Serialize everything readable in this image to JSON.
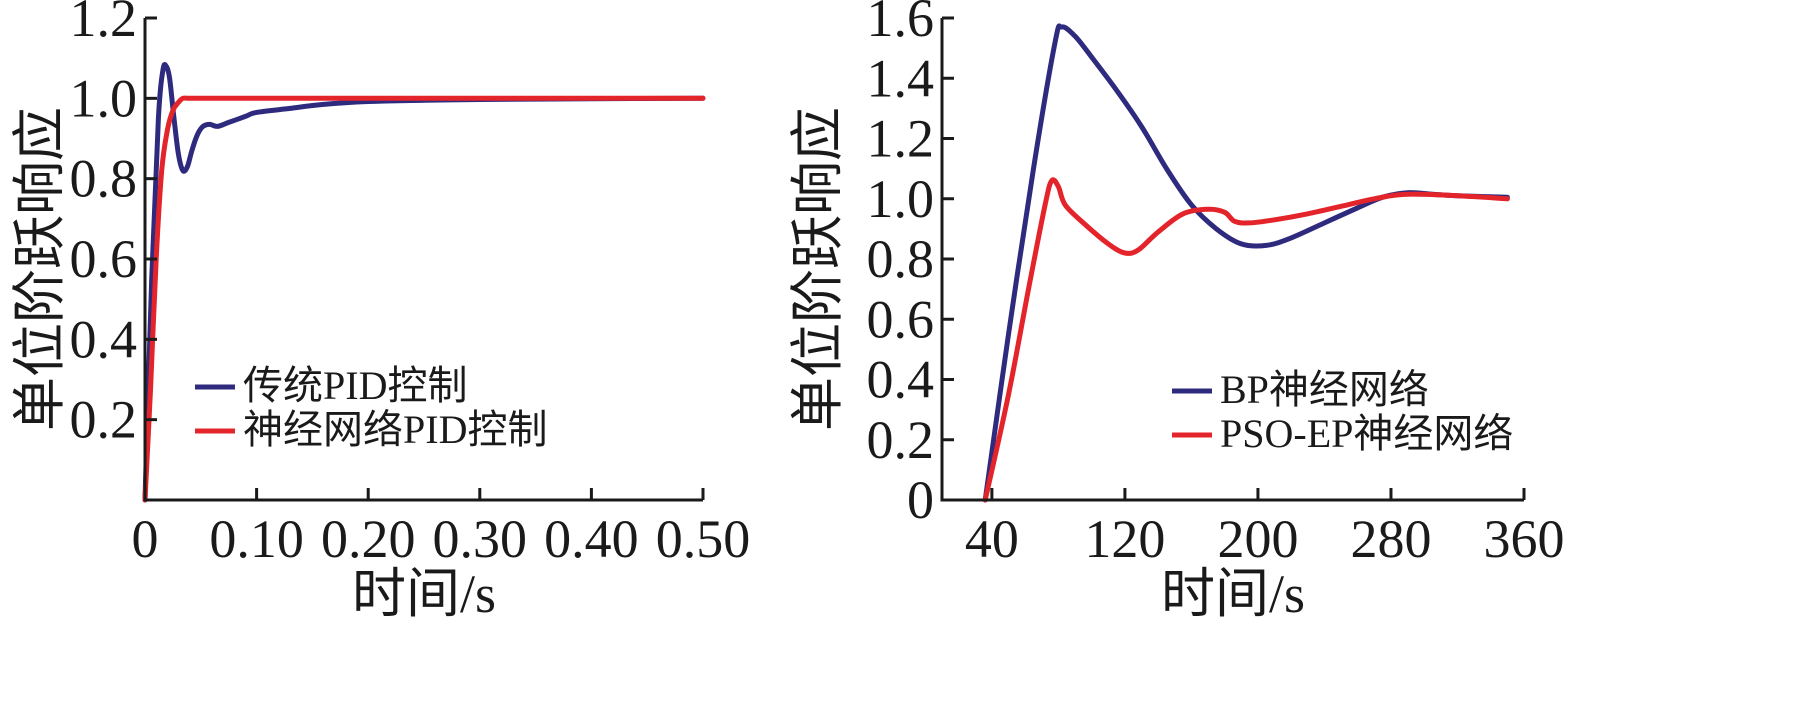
{
  "chart_data": [
    {
      "type": "line",
      "xlabel": "时间/s",
      "ylabel": "单位阶跃响应",
      "xlim": [
        0,
        0.5
      ],
      "ylim": [
        0,
        1.2
      ],
      "xticks": [
        0,
        0.1,
        0.2,
        0.3,
        0.4,
        0.5
      ],
      "xtick_labels": [
        "0",
        "0.10",
        "0.20",
        "0.30",
        "0.40",
        "0.50"
      ],
      "yticks": [
        0.2,
        0.4,
        0.6,
        0.8,
        1.0,
        1.2
      ],
      "ytick_labels": [
        "0.2",
        "0.4",
        "0.6",
        "0.8",
        "1.0",
        "1.2"
      ],
      "grid": false,
      "legend": "lower-left",
      "series": [
        {
          "name": "传统PID控制",
          "color": "#2e2a7e",
          "x": [
            0,
            0.006,
            0.012,
            0.016,
            0.019,
            0.022,
            0.026,
            0.03,
            0.034,
            0.038,
            0.042,
            0.047,
            0.052,
            0.058,
            0.065,
            0.075,
            0.09,
            0.1,
            0.13,
            0.16,
            0.2,
            0.25,
            0.3,
            0.4,
            0.5
          ],
          "values": [
            0,
            0.55,
            0.95,
            1.07,
            1.08,
            1.05,
            0.95,
            0.86,
            0.82,
            0.83,
            0.87,
            0.91,
            0.93,
            0.935,
            0.93,
            0.94,
            0.955,
            0.965,
            0.975,
            0.985,
            0.992,
            0.995,
            0.997,
            0.999,
            1.0
          ]
        },
        {
          "name": "神经网络PID控制",
          "color": "#e3242b",
          "x": [
            0,
            0.005,
            0.01,
            0.015,
            0.02,
            0.025,
            0.03,
            0.034,
            0.04,
            0.06,
            0.1,
            0.2,
            0.3,
            0.4,
            0.5
          ],
          "values": [
            0,
            0.28,
            0.6,
            0.82,
            0.92,
            0.97,
            0.99,
            1.0,
            1.0,
            1.0,
            1.0,
            1.0,
            1.0,
            1.0,
            1.0
          ]
        }
      ]
    },
    {
      "type": "line",
      "xlabel": "时间/s",
      "ylabel": "单位阶跃响应",
      "xlim": [
        10,
        360
      ],
      "ylim": [
        0,
        1.6
      ],
      "xticks": [
        40,
        120,
        200,
        280,
        360
      ],
      "xtick_labels": [
        "40",
        "120",
        "200",
        "280",
        "360"
      ],
      "yticks": [
        0,
        0.2,
        0.4,
        0.6,
        0.8,
        1.0,
        1.2,
        1.4,
        1.6
      ],
      "ytick_labels": [
        "0",
        "0.2",
        "0.4",
        "0.6",
        "0.8",
        "1.0",
        "1.2",
        "1.4",
        "1.6"
      ],
      "grid": false,
      "legend": "lower-right",
      "series": [
        {
          "name": "BP神经网络",
          "color": "#2e2a7e",
          "x": [
            36,
            50,
            65,
            78,
            82,
            90,
            100,
            115,
            130,
            145,
            160,
            175,
            190,
            205,
            220,
            240,
            260,
            275,
            290,
            305,
            320,
            350
          ],
          "values": [
            0,
            0.55,
            1.1,
            1.52,
            1.57,
            1.54,
            1.47,
            1.36,
            1.24,
            1.1,
            0.98,
            0.9,
            0.85,
            0.845,
            0.87,
            0.92,
            0.97,
            1.005,
            1.02,
            1.015,
            1.01,
            1.005
          ]
        },
        {
          "name": "PSO-EP神经网络",
          "color": "#e3242b",
          "x": [
            36,
            50,
            62,
            72,
            76,
            80,
            84,
            95,
            110,
            120,
            128,
            140,
            155,
            170,
            180,
            186,
            195,
            210,
            230,
            250,
            270,
            290,
            320,
            350
          ],
          "values": [
            0,
            0.35,
            0.7,
            0.98,
            1.06,
            1.04,
            0.98,
            0.92,
            0.85,
            0.82,
            0.83,
            0.89,
            0.95,
            0.965,
            0.955,
            0.925,
            0.92,
            0.93,
            0.95,
            0.975,
            1.0,
            1.015,
            1.01,
            1.0
          ]
        }
      ]
    }
  ]
}
